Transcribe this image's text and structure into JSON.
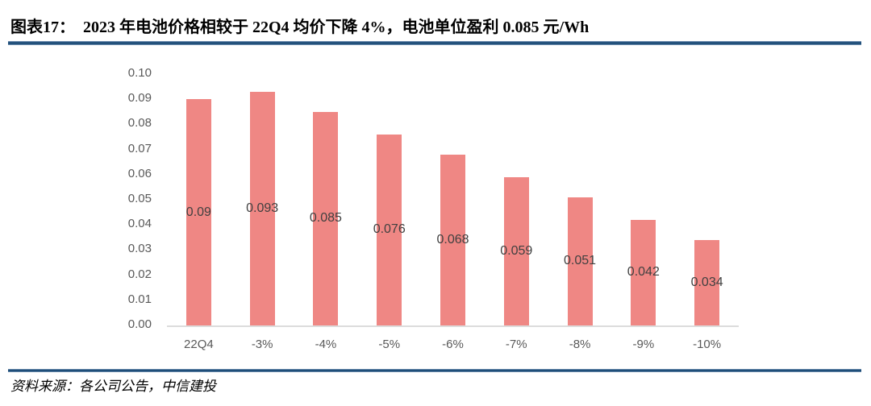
{
  "header": {
    "title": "图表17：  2023 年电池价格相较于 22Q4 均价下降 4%，电池单位盈利 0.085 元/Wh"
  },
  "chart_data": {
    "type": "bar",
    "title": "",
    "categories": [
      "22Q4",
      "-3%",
      "-4%",
      "-5%",
      "-6%",
      "-7%",
      "-8%",
      "-9%",
      "-10%"
    ],
    "values": [
      0.09,
      0.093,
      0.085,
      0.076,
      0.068,
      0.059,
      0.051,
      0.042,
      0.034
    ],
    "data_labels": [
      "0.09",
      "0.093",
      "0.085",
      "0.076",
      "0.068",
      "0.059",
      "0.051",
      "0.042",
      "0.034"
    ],
    "xlabel": "",
    "ylabel": "",
    "ylim": [
      0,
      0.1
    ],
    "ytick_step": 0.01,
    "ytick_labels": [
      "0.00",
      "0.01",
      "0.02",
      "0.03",
      "0.04",
      "0.05",
      "0.06",
      "0.07",
      "0.08",
      "0.09",
      "0.10"
    ],
    "grid": false,
    "legend": false,
    "bar_color": "#EF8784",
    "value_label_color": "#404040",
    "tick_label_color": "#595959",
    "axis_line_color": "#DCDCDC"
  },
  "footer": {
    "source": "资料来源：各公司公告，中信建投"
  },
  "colors": {
    "divider": "#1F4E79",
    "title_text": "#000000"
  }
}
